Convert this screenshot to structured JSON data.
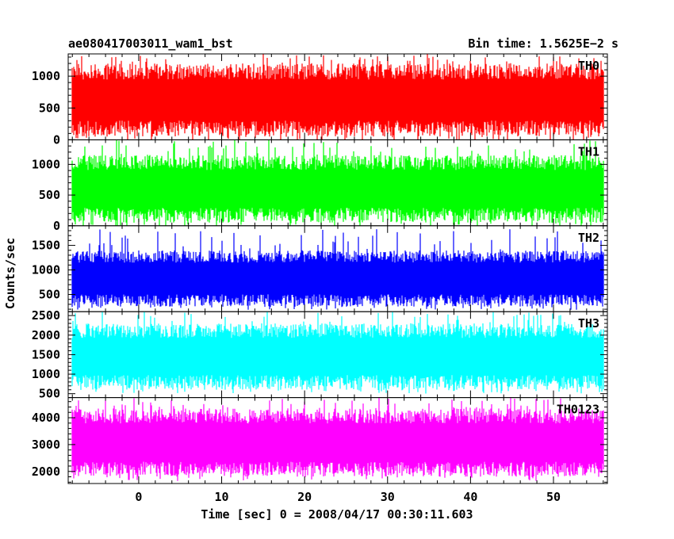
{
  "header": {
    "title": "ae080417003011_wam1_bst",
    "bin_time": "Bin time: 1.5625E−2 s"
  },
  "chart_data": {
    "type": "line",
    "ylabel": "Counts/sec",
    "xlabel": "Time [sec] 0 = 2008/04/17 00:30:11.603",
    "xlim": [
      -8.5,
      56.5
    ],
    "x_data_range": [
      -8,
      56
    ],
    "x_ticks": [
      0,
      10,
      20,
      30,
      40,
      50
    ],
    "panels": [
      {
        "name": "TH0",
        "color": "#ff0000",
        "ylim": [
          0,
          1350
        ],
        "y_ticks": [
          0,
          500,
          1000
        ],
        "typical_range": [
          50,
          1200
        ],
        "spike_max": 1350,
        "noise_seed": 11
      },
      {
        "name": "TH1",
        "color": "#00ff00",
        "ylim": [
          0,
          1400
        ],
        "y_ticks": [
          0,
          500,
          1000
        ],
        "typical_range": [
          50,
          1150
        ],
        "spike_max": 1400,
        "noise_seed": 23
      },
      {
        "name": "TH2",
        "color": "#0000ff",
        "ylim": [
          150,
          1900
        ],
        "y_ticks": [
          500,
          1000,
          1500
        ],
        "typical_range": [
          250,
          1400
        ],
        "spike_max": 1850,
        "noise_seed": 37
      },
      {
        "name": "TH3",
        "color": "#00ffff",
        "ylim": [
          400,
          2600
        ],
        "y_ticks": [
          500,
          1000,
          1500,
          2000,
          2500
        ],
        "typical_range": [
          600,
          2300
        ],
        "spike_max": 2600,
        "noise_seed": 41
      },
      {
        "name": "TH0123",
        "color": "#ff00ff",
        "ylim": [
          1550,
          4750
        ],
        "y_ticks": [
          2000,
          3000,
          4000
        ],
        "typical_range": [
          1800,
          4350
        ],
        "spike_max": 4750,
        "noise_seed": 53
      }
    ]
  }
}
